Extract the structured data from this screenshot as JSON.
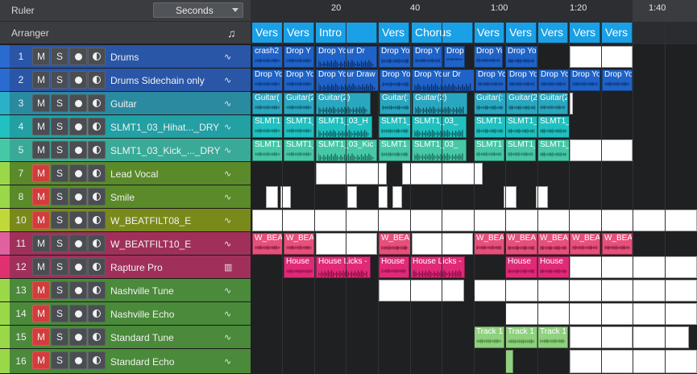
{
  "header": {
    "ruler_label": "Ruler",
    "ruler_mode": "Seconds",
    "arranger_label": "Arranger"
  },
  "ruler_ticks": [
    "20",
    "40",
    "1:00",
    "1:20",
    "1:40"
  ],
  "markers": [
    {
      "label": "Vers"
    },
    {
      "label": "Vers"
    },
    {
      "label": "Intro"
    },
    {
      "label": "Vers"
    },
    {
      "label": "Chorus"
    },
    {
      "label": "Vers"
    },
    {
      "label": "Vers"
    },
    {
      "label": "Vers"
    },
    {
      "label": "Vers"
    },
    {
      "label": "Vers"
    }
  ],
  "tracks": [
    {
      "num": "1",
      "name": "Drums",
      "mute": false,
      "icon": "waveform-icon",
      "color": "#2a56a8"
    },
    {
      "num": "2",
      "name": "Drums Sidechain only",
      "mute": false,
      "icon": "waveform-icon",
      "color": "#2a56a8"
    },
    {
      "num": "3",
      "name": "Guitar",
      "mute": false,
      "icon": "waveform-icon",
      "color": "#2a8aa0"
    },
    {
      "num": "4",
      "name": "SLMT1_03_Hihat..._DRY",
      "mute": false,
      "icon": "waveform-icon",
      "color": "#22a0a4"
    },
    {
      "num": "5",
      "name": "SLMT1_03_Kick_..._DRY",
      "mute": false,
      "icon": "waveform-icon",
      "color": "#3aaa98"
    },
    {
      "num": "7",
      "name": "Lead Vocal",
      "mute": true,
      "icon": "waveform-icon",
      "color": "#5a8a2a"
    },
    {
      "num": "8",
      "name": "Smile",
      "mute": true,
      "icon": "waveform-icon",
      "color": "#5a8a2a"
    },
    {
      "num": "10",
      "name": "W_BEATFILT08_E",
      "mute": true,
      "icon": "waveform-icon",
      "color": "#7a8a1a"
    },
    {
      "num": "11",
      "name": "W_BEATFILT10_E",
      "mute": false,
      "icon": "waveform-icon",
      "color": "#a0305a"
    },
    {
      "num": "12",
      "name": "Rapture Pro",
      "mute": false,
      "icon": "piano-icon",
      "color": "#a0305a"
    },
    {
      "num": "13",
      "name": "Nashville Tune",
      "mute": true,
      "icon": "waveform-icon",
      "color": "#4a8a3a"
    },
    {
      "num": "14",
      "name": "Nashville Echo",
      "mute": true,
      "icon": "waveform-icon",
      "color": "#4a8a3a"
    },
    {
      "num": "15",
      "name": "Standard Tune",
      "mute": true,
      "icon": "waveform-icon",
      "color": "#4a8a3a"
    },
    {
      "num": "16",
      "name": "Standard Echo",
      "mute": true,
      "icon": "waveform-icon",
      "color": "#4a8a3a"
    }
  ],
  "button_labels": {
    "mute": "M",
    "solo": "S"
  },
  "clips": {
    "drums": [
      "crash2",
      "Drop Y",
      "Drop Your Dr",
      "Drop Yo",
      "Drop Y",
      "Drop Yo",
      "Drop Yo",
      "Drop Yo"
    ],
    "drums_sc": [
      "Drop Yo",
      "Drop Yo",
      "Drop Your Draw",
      "Drop Yo",
      "Drop Your Dr",
      "Drop Yo",
      "Drop Yo",
      "Drop Yo",
      "Drop Yo",
      "Drop Yo"
    ],
    "guitar": [
      "Guitar(",
      "Guitar(2",
      "Guitar(2)",
      "Guitar(:",
      "Guitar(2)",
      "Guitar(:",
      "Guitar(2",
      "Guitar(2"
    ],
    "hihat": [
      "SLMT1",
      "SLMT1_",
      "SLMT1_03_H",
      "SLMT1_",
      "SLMT1_03_",
      "SLMT1",
      "SLMT1_",
      "SLMT1_"
    ],
    "kick": [
      "SLMT1",
      "SLMT1_",
      "SLMT1_03_Kic",
      "SLMT1",
      "SLMT1_03_",
      "SLMT1",
      "SLMT1_",
      "SLMT1_"
    ],
    "wbeat10": [
      "W_BEA",
      "W_BEA",
      "W_BEA",
      "W_BEA",
      "W_BEA",
      "W_BEA",
      "W_BEA",
      "W_BEA"
    ],
    "rapture": [
      "House",
      "House Licks -",
      "House",
      "House Licks -",
      "House",
      "House"
    ],
    "standard_tune": [
      "Track 1",
      "Track 1",
      "Track 1"
    ]
  },
  "colors": {
    "marker": "#1aa0e6",
    "drums_clip": "#1f63c8",
    "guitar_clip": "#2aa7c0",
    "hihat_clip": "#20c0c0",
    "kick_clip": "#46c8a6",
    "pink_clip": "#e6507a",
    "rapture_clip": "#e02a78"
  }
}
